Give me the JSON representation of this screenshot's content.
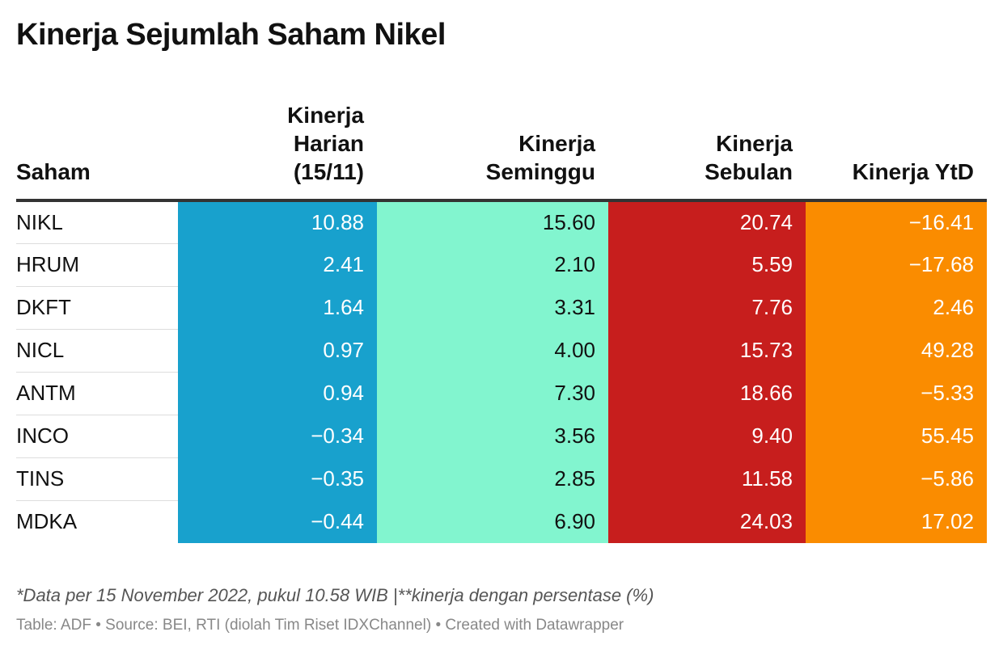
{
  "title": "Kinerja Sejumlah Saham Nikel",
  "note": "*Data per 15 November 2022, pukul 10.58 WIB |**kinerja dengan persentase (%)",
  "source": "Table: ADF • Source: BEI, RTI (diolah Tim Riset IDXChannel) • Created with Datawrapper",
  "colors": {
    "harian": "#18a1cd",
    "seminggu": "#82f5cf",
    "sebulan": "#c71e1d",
    "ytd": "#fa8c00",
    "text_light": "#ffffff",
    "text_dark": "#111111"
  },
  "chart_data": {
    "type": "table",
    "columns": [
      {
        "key": "saham",
        "label": [
          "Saham"
        ]
      },
      {
        "key": "harian",
        "label": [
          "Kinerja",
          "Harian",
          "(15/11)"
        ]
      },
      {
        "key": "seminggu",
        "label": [
          "Kinerja",
          "Seminggu"
        ]
      },
      {
        "key": "sebulan",
        "label": [
          "Kinerja",
          "Sebulan"
        ]
      },
      {
        "key": "ytd",
        "label": [
          "Kinerja YtD"
        ]
      }
    ],
    "rows": [
      {
        "saham": "NIKL",
        "harian": "10.88",
        "seminggu": "15.60",
        "sebulan": "20.74",
        "ytd": "−16.41"
      },
      {
        "saham": "HRUM",
        "harian": "2.41",
        "seminggu": "2.10",
        "sebulan": "5.59",
        "ytd": "−17.68"
      },
      {
        "saham": "DKFT",
        "harian": "1.64",
        "seminggu": "3.31",
        "sebulan": "7.76",
        "ytd": "2.46"
      },
      {
        "saham": "NICL",
        "harian": "0.97",
        "seminggu": "4.00",
        "sebulan": "15.73",
        "ytd": "49.28"
      },
      {
        "saham": "ANTM",
        "harian": "0.94",
        "seminggu": "7.30",
        "sebulan": "18.66",
        "ytd": "−5.33"
      },
      {
        "saham": "INCO",
        "harian": "−0.34",
        "seminggu": "3.56",
        "sebulan": "9.40",
        "ytd": "55.45"
      },
      {
        "saham": "TINS",
        "harian": "−0.35",
        "seminggu": "2.85",
        "sebulan": "11.58",
        "ytd": "−5.86"
      },
      {
        "saham": "MDKA",
        "harian": "−0.44",
        "seminggu": "6.90",
        "sebulan": "24.03",
        "ytd": "17.02"
      }
    ]
  }
}
